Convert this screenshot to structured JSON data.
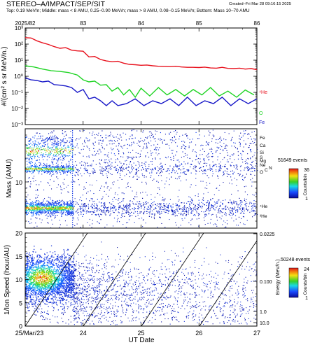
{
  "header": {
    "title": "STEREO–A/IMPACT/SEP/SIT",
    "created": "Created–Fri Mar 28 09:16:15 2025",
    "subtitle": "Top: 0.19 MeV/n; Middle: mass < 8 AMU, 0.25–0.90 MeV/n; mass > 8 AMU, 0.08–0.15 MeV/n; Bottom: Mass 10–70 AMU"
  },
  "colors": {
    "he": "#e8121e",
    "o": "#1fd424",
    "fe": "#1818c8",
    "frame": "#000000"
  },
  "chart_data": [
    {
      "type": "line",
      "panel": "top",
      "doy_axis": {
        "ticks": [
          "2025/82",
          "83",
          "84",
          "85",
          "86"
        ],
        "range": [
          82,
          86
        ]
      },
      "ylabel": "#/(cm² s sr MeV/n.)",
      "yscale": "log",
      "ylim_exp": [
        -3,
        3
      ],
      "ytick_labels": [
        "10⁻³",
        "10⁻²",
        "10⁻¹",
        "10⁰",
        "10¹",
        "10²",
        "10³"
      ],
      "series": [
        {
          "name": "⁴He",
          "color": "#e8121e",
          "x": [
            82.0,
            82.1,
            82.2,
            82.3,
            82.4,
            82.5,
            82.6,
            82.7,
            82.8,
            82.9,
            83.0,
            83.1,
            83.2,
            83.3,
            83.4,
            83.5,
            83.6,
            83.7,
            83.8,
            83.9,
            84.0,
            84.1,
            84.2,
            84.3,
            84.4,
            84.5,
            84.6,
            84.7,
            84.8,
            84.9,
            85.0,
            85.1,
            85.2,
            85.3,
            85.4,
            85.5,
            85.6,
            85.7,
            85.8,
            85.9,
            86.0
          ],
          "y": [
            250,
            240,
            160,
            120,
            95,
            70,
            55,
            60,
            42,
            38,
            36,
            16,
            17,
            11,
            9,
            8,
            8.5,
            6.5,
            5.5,
            5.2,
            4.8,
            5,
            4.5,
            4.2,
            4.1,
            4,
            4.2,
            3.8,
            3.6,
            3.6,
            3.5,
            3.7,
            3.3,
            3.2,
            3.6,
            3.1,
            3,
            3.2,
            2.8,
            3,
            2.6
          ]
        },
        {
          "name": "O",
          "color": "#1fd424",
          "x": [
            82.0,
            82.15,
            82.3,
            82.45,
            82.6,
            82.75,
            82.9,
            83.0,
            83.1,
            83.2,
            83.3,
            83.4,
            83.5,
            83.6,
            83.7,
            83.8,
            83.9,
            84.0,
            84.15,
            84.3,
            84.45,
            84.6,
            84.75,
            84.9,
            85.05,
            85.2,
            85.35,
            85.5,
            85.65,
            85.8,
            85.95
          ],
          "y": [
            4.5,
            3.8,
            2.8,
            2.2,
            2.0,
            1.7,
            1.2,
            0.6,
            0.45,
            0.5,
            0.28,
            0.3,
            0.12,
            0.2,
            0.07,
            0.15,
            0.05,
            0.18,
            0.06,
            0.2,
            0.07,
            0.15,
            0.06,
            0.15,
            0.07,
            0.2,
            0.06,
            0.12,
            0.05,
            0.14,
            0.07
          ]
        },
        {
          "name": "Fe",
          "color": "#1818c8",
          "x": [
            82.0,
            82.1,
            82.2,
            82.3,
            82.4,
            82.5,
            82.6,
            82.7,
            82.8,
            82.9,
            83.0,
            83.1,
            83.2,
            83.3,
            83.4,
            83.5,
            83.6,
            83.75,
            83.9,
            84.05,
            84.2,
            84.35,
            84.5,
            84.65,
            84.8,
            84.95,
            85.1,
            85.25,
            85.4,
            85.55,
            85.7,
            85.85,
            86.0
          ],
          "y": [
            0.8,
            0.6,
            0.55,
            0.45,
            0.5,
            0.3,
            0.28,
            0.25,
            0.2,
            0.1,
            0.15,
            0.04,
            0.05,
            0.03,
            0.015,
            0.03,
            0.015,
            0.02,
            0.04,
            0.015,
            0.03,
            0.02,
            0.04,
            0.015,
            0.05,
            0.015,
            0.03,
            0.02,
            0.05,
            0.015,
            0.04,
            0.02,
            0.04
          ]
        }
      ]
    },
    {
      "type": "heatmap",
      "panel": "middle",
      "ylabel": "Mass (AMU)",
      "yscale": "log",
      "ytick_label": "10",
      "species_labels": [
        "Fe",
        "Ca",
        "Si",
        "S",
        "Mg",
        "Ne",
        "O",
        "C",
        "N",
        "⁴He",
        "³He"
      ],
      "colorbar": {
        "events": "51649 events",
        "label": "Counts/bin",
        "min": "1",
        "max": "36"
      }
    },
    {
      "type": "heatmap",
      "panel": "bottom",
      "ylabel": "1/Ion Speed (hour/AU)",
      "ylim": [
        0,
        20
      ],
      "ytick_labels": [
        "0",
        "5",
        "10",
        "15",
        "20"
      ],
      "xlabel": "UT Date",
      "xtick_labels": [
        "25/Mar/23",
        "24",
        "25",
        "26",
        "27"
      ],
      "right_axis": {
        "label": "Energy (MeV/n.)",
        "ticks": [
          "0.0225",
          "0.100",
          "1.0",
          "10.0"
        ]
      },
      "colorbar": {
        "events": "50248 events",
        "label": "Counts/bin",
        "min": "1",
        "max": "24"
      }
    }
  ]
}
